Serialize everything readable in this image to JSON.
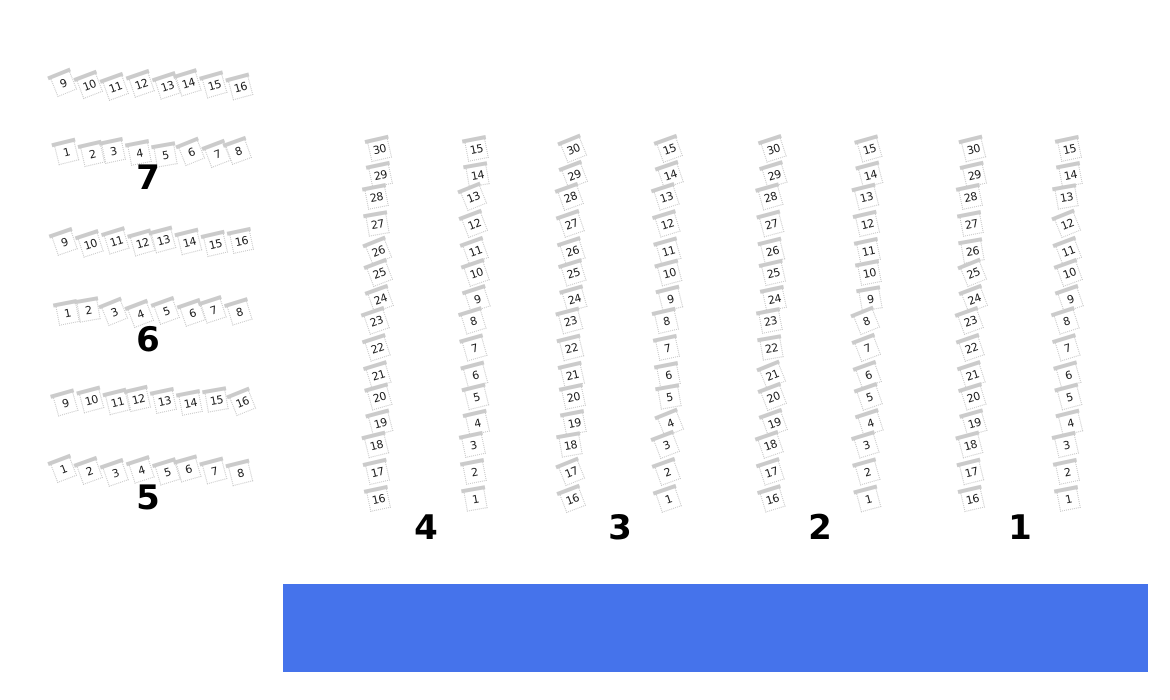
{
  "stage": {
    "color": "#4573EB"
  },
  "row_sections": [
    {
      "label": "7",
      "top_seats": [
        "9",
        "10",
        "11",
        "12",
        "13",
        "14",
        "15",
        "16"
      ],
      "bottom_seats": [
        "1",
        "2",
        "3",
        "4",
        "5",
        "6",
        "7",
        "8"
      ]
    },
    {
      "label": "6",
      "top_seats": [
        "9",
        "10",
        "11",
        "12",
        "13",
        "14",
        "15",
        "16"
      ],
      "bottom_seats": [
        "1",
        "2",
        "3",
        "4",
        "5",
        "6",
        "7",
        "8"
      ]
    },
    {
      "label": "5",
      "top_seats": [
        "9",
        "10",
        "11",
        "12",
        "13",
        "14",
        "15",
        "16"
      ],
      "bottom_seats": [
        "1",
        "2",
        "3",
        "4",
        "5",
        "6",
        "7",
        "8"
      ]
    }
  ],
  "column_sections": [
    {
      "label": "4",
      "left_seats": [
        "30",
        "29",
        "28",
        "27",
        "26",
        "25",
        "24",
        "23",
        "22",
        "21",
        "20",
        "19",
        "18",
        "17",
        "16"
      ],
      "right_seats": [
        "15",
        "14",
        "13",
        "12",
        "11",
        "10",
        "9",
        "8",
        "7",
        "6",
        "5",
        "4",
        "3",
        "2",
        "1"
      ]
    },
    {
      "label": "3",
      "left_seats": [
        "30",
        "29",
        "28",
        "27",
        "26",
        "25",
        "24",
        "23",
        "22",
        "21",
        "20",
        "19",
        "18",
        "17",
        "16"
      ],
      "right_seats": [
        "15",
        "14",
        "13",
        "12",
        "11",
        "10",
        "9",
        "8",
        "7",
        "6",
        "5",
        "4",
        "3",
        "2",
        "1"
      ]
    },
    {
      "label": "2",
      "left_seats": [
        "30",
        "29",
        "28",
        "27",
        "26",
        "25",
        "24",
        "23",
        "22",
        "21",
        "20",
        "19",
        "18",
        "17",
        "16"
      ],
      "right_seats": [
        "15",
        "14",
        "13",
        "12",
        "11",
        "10",
        "9",
        "8",
        "7",
        "6",
        "5",
        "4",
        "3",
        "2",
        "1"
      ]
    },
    {
      "label": "1",
      "left_seats": [
        "30",
        "29",
        "28",
        "27",
        "26",
        "25",
        "24",
        "23",
        "22",
        "21",
        "20",
        "19",
        "18",
        "17",
        "16"
      ],
      "right_seats": [
        "15",
        "14",
        "13",
        "12",
        "11",
        "10",
        "9",
        "8",
        "7",
        "6",
        "5",
        "4",
        "3",
        "2",
        "1"
      ]
    }
  ]
}
